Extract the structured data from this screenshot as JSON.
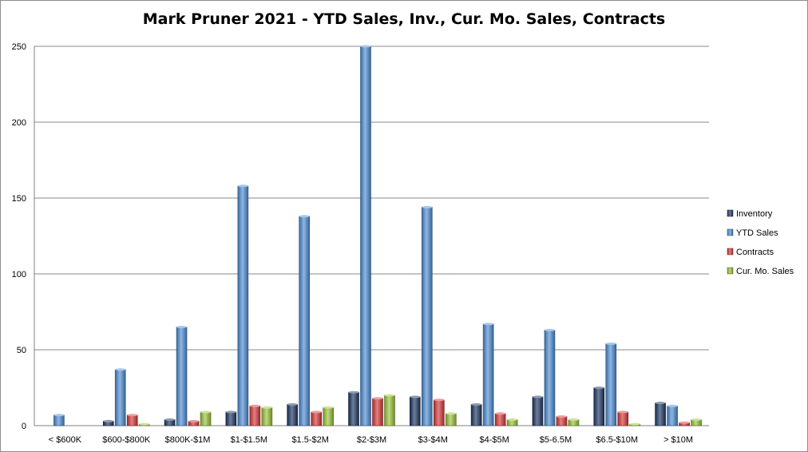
{
  "chart_data": {
    "type": "bar",
    "title": "Mark Pruner 2021 - YTD Sales, Inv., Cur. Mo. Sales, Contracts",
    "xlabel": "",
    "ylabel": "",
    "ylim": [
      0,
      250
    ],
    "yticks": [
      "0",
      "50",
      "100",
      "150",
      "200",
      "250"
    ],
    "grid": true,
    "legend_position": "right",
    "categories": [
      "< $600K",
      "$600-$800K",
      "$800K-$1M",
      "$1-$1.5M",
      "$1.5-$2M",
      "$2-$3M",
      "$3-$4M",
      "$4-$5M",
      "$5-6.5M",
      "$6.5-$10M",
      "> $10M"
    ],
    "series": [
      {
        "name": "Inventory",
        "color": "#1f3864",
        "values": [
          0,
          3,
          4,
          9,
          14,
          22,
          19,
          14,
          19,
          25,
          15
        ]
      },
      {
        "name": "YTD Sales",
        "color": "#4f8fd6",
        "values": [
          7,
          37,
          65,
          158,
          138,
          250,
          144,
          67,
          63,
          54,
          13
        ]
      },
      {
        "name": "Contracts",
        "color": "#d83a3a",
        "values": [
          0,
          7,
          3,
          13,
          9,
          18,
          17,
          8,
          6,
          9,
          2
        ]
      },
      {
        "name": "Cur. Mo. Sales",
        "color": "#9bc63a",
        "values": [
          0,
          1,
          9,
          12,
          12,
          20,
          8,
          4,
          4,
          1,
          4
        ]
      }
    ]
  }
}
